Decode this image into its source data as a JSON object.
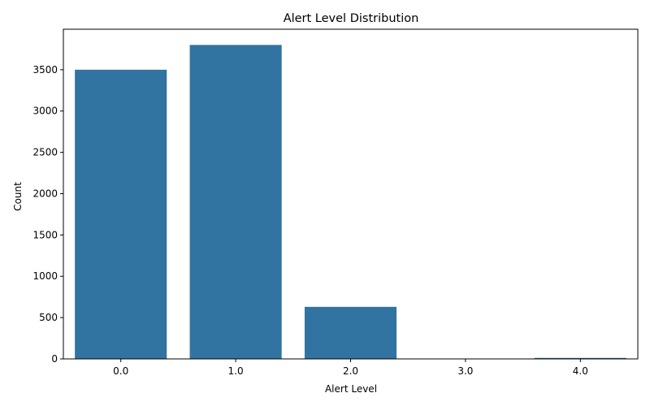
{
  "chart_data": {
    "type": "bar",
    "title": "Alert Level Distribution",
    "xlabel": "Alert Level",
    "ylabel": "Count",
    "categories": [
      "0.0",
      "1.0",
      "2.0",
      "3.0",
      "4.0"
    ],
    "values": [
      3500,
      3800,
      630,
      0,
      12
    ],
    "ylim": [
      0,
      3990
    ],
    "yticks": [
      0,
      500,
      1000,
      1500,
      2000,
      2500,
      3000,
      3500
    ],
    "bar_color": "#3274a1",
    "grid": false,
    "legend": "none"
  }
}
